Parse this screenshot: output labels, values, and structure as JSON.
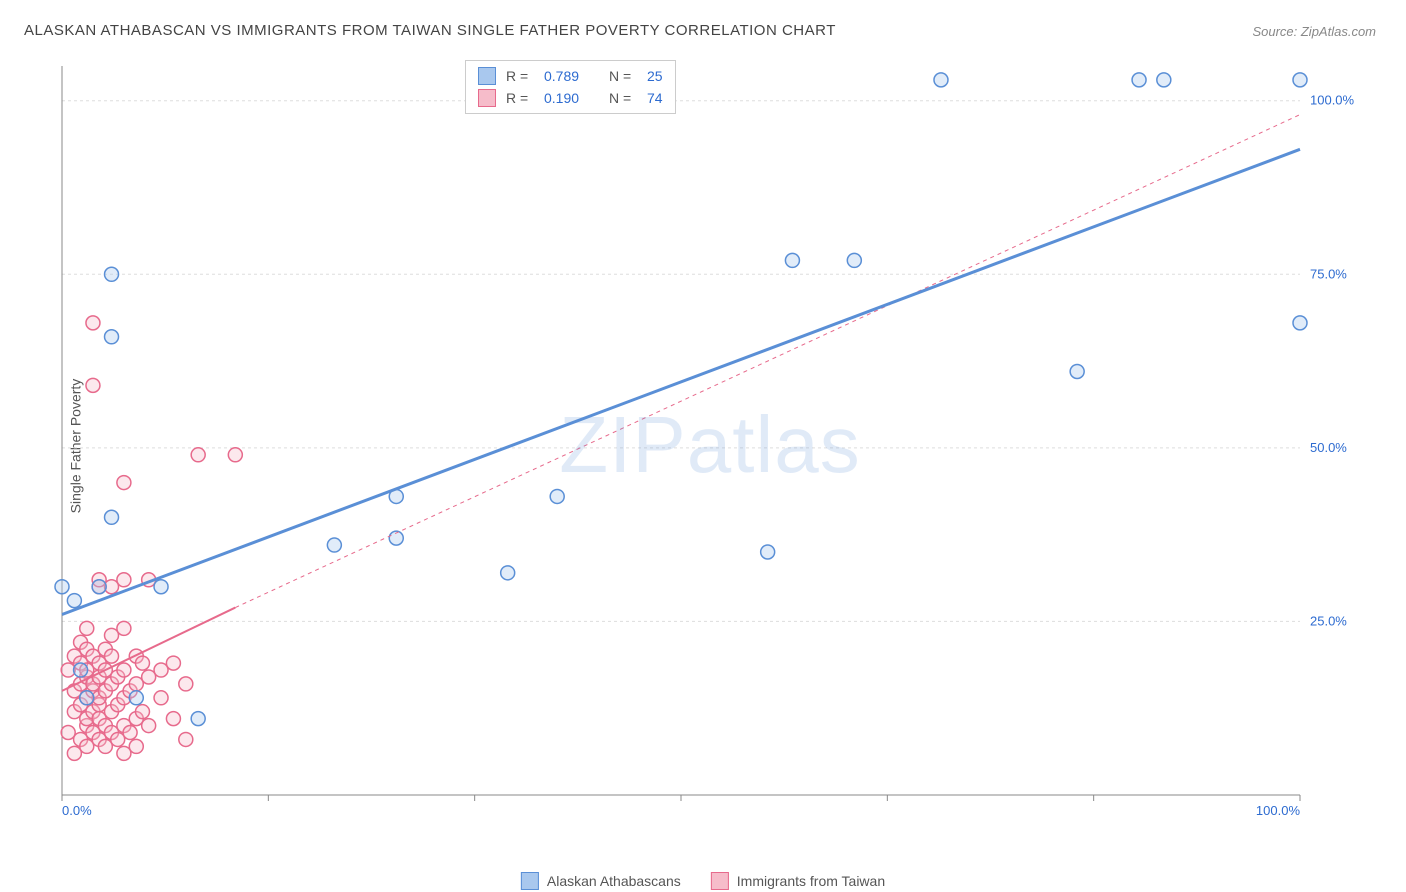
{
  "title": "ALASKAN ATHABASCAN VS IMMIGRANTS FROM TAIWAN SINGLE FATHER POVERTY CORRELATION CHART",
  "source": "Source: ZipAtlas.com",
  "y_axis_label": "Single Father Poverty",
  "watermark": "ZIPatlas",
  "chart": {
    "type": "scatter",
    "xlim": [
      0,
      100
    ],
    "ylim": [
      0,
      105
    ],
    "x_ticks": [
      0,
      100
    ],
    "x_tick_labels": [
      "0.0%",
      "100.0%"
    ],
    "y_ticks": [
      25,
      50,
      75,
      100
    ],
    "y_tick_labels": [
      "25.0%",
      "50.0%",
      "75.0%",
      "100.0%"
    ],
    "grid_color": "#dddddd",
    "grid_dash": "3,3",
    "axis_line_color": "#888888",
    "background_color": "#ffffff",
    "text_color": "#555555",
    "value_color": "#2d6bd0",
    "marker_radius": 7,
    "marker_stroke_width": 1.5,
    "marker_fill_opacity": 0.35,
    "series": [
      {
        "name": "Alaskan Athabascans",
        "color_fill": "#a9c8ee",
        "color_stroke": "#5a8fd6",
        "r_value": "0.789",
        "n_value": "25",
        "trend": {
          "x1": 0,
          "y1": 26,
          "x2": 100,
          "y2": 93,
          "stroke_width": 3,
          "dash": "none"
        },
        "points": [
          [
            0,
            30
          ],
          [
            1,
            28
          ],
          [
            1.5,
            18
          ],
          [
            2,
            14
          ],
          [
            3,
            30
          ],
          [
            4,
            40
          ],
          [
            4,
            66
          ],
          [
            4,
            75
          ],
          [
            6,
            14
          ],
          [
            8,
            30
          ],
          [
            11,
            11
          ],
          [
            22,
            36
          ],
          [
            27,
            37
          ],
          [
            27,
            43
          ],
          [
            36,
            32
          ],
          [
            40,
            43
          ],
          [
            57,
            35
          ],
          [
            59,
            77
          ],
          [
            64,
            77
          ],
          [
            71,
            103
          ],
          [
            82,
            61
          ],
          [
            87,
            103
          ],
          [
            89,
            103
          ],
          [
            100,
            68
          ],
          [
            100,
            103
          ]
        ]
      },
      {
        "name": "Immigrants from Taiwan",
        "color_fill": "#f6bcca",
        "color_stroke": "#e76a8c",
        "r_value": "0.190",
        "n_value": "74",
        "trend": {
          "x1": 0,
          "y1": 15,
          "x2": 14,
          "y2": 27,
          "stroke_width": 2,
          "dash": "none"
        },
        "trend_ext": {
          "x1": 14,
          "y1": 27,
          "x2": 100,
          "y2": 98,
          "stroke_width": 1,
          "dash": "4,4"
        },
        "points": [
          [
            0.5,
            9
          ],
          [
            0.5,
            18
          ],
          [
            1,
            6
          ],
          [
            1,
            12
          ],
          [
            1,
            15
          ],
          [
            1,
            20
          ],
          [
            1.5,
            8
          ],
          [
            1.5,
            13
          ],
          [
            1.5,
            16
          ],
          [
            1.5,
            19
          ],
          [
            1.5,
            22
          ],
          [
            2,
            7
          ],
          [
            2,
            10
          ],
          [
            2,
            11
          ],
          [
            2,
            14
          ],
          [
            2,
            17
          ],
          [
            2,
            18
          ],
          [
            2,
            21
          ],
          [
            2,
            24
          ],
          [
            2.5,
            9
          ],
          [
            2.5,
            12
          ],
          [
            2.5,
            15
          ],
          [
            2.5,
            16
          ],
          [
            2.5,
            20
          ],
          [
            2.5,
            59
          ],
          [
            2.5,
            68
          ],
          [
            3,
            8
          ],
          [
            3,
            11
          ],
          [
            3,
            13
          ],
          [
            3,
            14
          ],
          [
            3,
            17
          ],
          [
            3,
            19
          ],
          [
            3,
            30
          ],
          [
            3,
            31
          ],
          [
            3.5,
            7
          ],
          [
            3.5,
            10
          ],
          [
            3.5,
            15
          ],
          [
            3.5,
            18
          ],
          [
            3.5,
            21
          ],
          [
            4,
            9
          ],
          [
            4,
            12
          ],
          [
            4,
            16
          ],
          [
            4,
            20
          ],
          [
            4,
            23
          ],
          [
            4,
            30
          ],
          [
            4.5,
            8
          ],
          [
            4.5,
            13
          ],
          [
            4.5,
            17
          ],
          [
            5,
            6
          ],
          [
            5,
            10
          ],
          [
            5,
            14
          ],
          [
            5,
            18
          ],
          [
            5,
            24
          ],
          [
            5,
            31
          ],
          [
            5,
            45
          ],
          [
            5.5,
            9
          ],
          [
            5.5,
            15
          ],
          [
            6,
            7
          ],
          [
            6,
            11
          ],
          [
            6,
            16
          ],
          [
            6,
            20
          ],
          [
            6.5,
            12
          ],
          [
            6.5,
            19
          ],
          [
            7,
            10
          ],
          [
            7,
            17
          ],
          [
            7,
            31
          ],
          [
            8,
            14
          ],
          [
            8,
            18
          ],
          [
            9,
            11
          ],
          [
            9,
            19
          ],
          [
            10,
            8
          ],
          [
            10,
            16
          ],
          [
            11,
            49
          ],
          [
            14,
            49
          ]
        ]
      }
    ]
  },
  "stats_legend": {
    "r_label": "R =",
    "n_label": "N ="
  },
  "bottom_legend": {
    "items": [
      "Alaskan Athabascans",
      "Immigrants from Taiwan"
    ]
  }
}
